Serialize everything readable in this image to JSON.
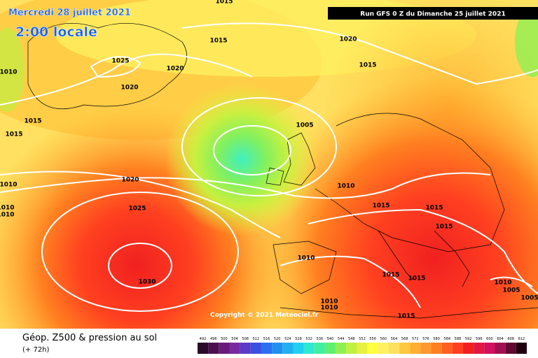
{
  "map": {
    "date": "Mercredi 28 juillet 2021",
    "time": "2:00 locale",
    "run": "Run GFS 0 Z du Dimanche 25 juillet 2021",
    "copyright": "Copyright © 2021 Meteociel.fr",
    "product": "Géop. Z500 & pression au sol",
    "lead": "(+ 72h)",
    "isobar_labels": [
      "1015",
      "1015",
      "1025",
      "1020",
      "1020",
      "1010",
      "1015",
      "1015",
      "1020",
      "1015",
      "1005",
      "1010",
      "1010",
      "1010",
      "1020",
      "1025",
      "1010",
      "1015",
      "1015",
      "1015",
      "1030",
      "1010",
      "1015",
      "1015",
      "1010",
      "1005",
      "1005",
      "1010",
      "1010",
      "1015"
    ],
    "scale_labels": [
      492,
      496,
      500,
      504,
      508,
      512,
      516,
      520,
      524,
      528,
      532,
      536,
      540,
      544,
      548,
      552,
      556,
      560,
      564,
      568,
      572,
      576,
      580,
      584,
      588,
      592,
      596,
      600,
      604,
      608,
      612
    ],
    "scale_colors": [
      "#2a0a2a",
      "#4a1050",
      "#6a1a7a",
      "#7a2aa0",
      "#5a3ac8",
      "#3a50e0",
      "#2a70f0",
      "#2090f0",
      "#20b0f0",
      "#20d0f0",
      "#30e8d0",
      "#40f0a0",
      "#60f070",
      "#90f050",
      "#c0f040",
      "#e8f040",
      "#ffff40",
      "#fff060",
      "#ffe060",
      "#ffc840",
      "#ffb030",
      "#ff9830",
      "#ff8020",
      "#ff6020",
      "#ff4020",
      "#f02020",
      "#e01840",
      "#d01060",
      "#a01050",
      "#600a30",
      "#200010"
    ]
  }
}
